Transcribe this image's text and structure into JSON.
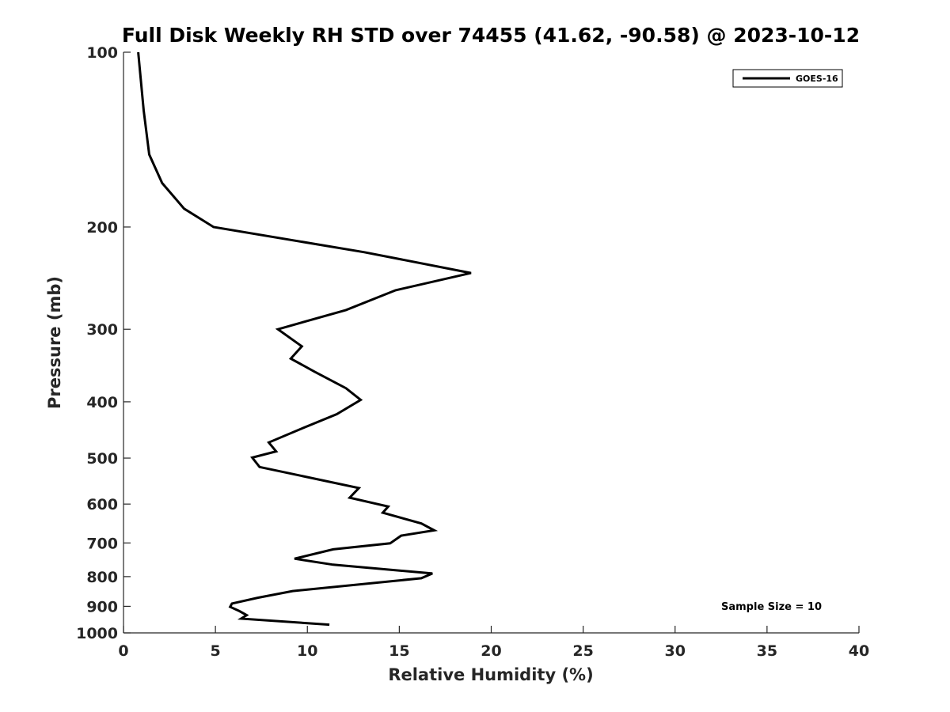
{
  "chart_data": {
    "type": "line",
    "title": "Full Disk Weekly RH STD over 74455 (41.62, -90.58) @ 2023-10-12",
    "xlabel": "Relative Humidity (%)",
    "ylabel": "Pressure (mb)",
    "xlim": [
      0,
      40
    ],
    "ylim": [
      100,
      1000
    ],
    "y_scale": "log",
    "y_reversed": true,
    "x_ticks": [
      "0",
      "5",
      "10",
      "15",
      "20",
      "25",
      "30",
      "35",
      "40"
    ],
    "y_ticks": [
      "100",
      "200",
      "300",
      "400",
      "500",
      "600",
      "700",
      "800",
      "900",
      "1000"
    ],
    "grid": false,
    "legend_position": "top-right",
    "annotation": "Sample Size = 10",
    "series": [
      {
        "name": "GOES-16",
        "color": "#000000",
        "points": [
          [
            0.8,
            100
          ],
          [
            1.1,
            126
          ],
          [
            1.4,
            150
          ],
          [
            2.1,
            168
          ],
          [
            3.3,
            186
          ],
          [
            4.9,
            200
          ],
          [
            13.1,
            221
          ],
          [
            18.9,
            240
          ],
          [
            14.8,
            257
          ],
          [
            12.1,
            278
          ],
          [
            8.4,
            300
          ],
          [
            9.7,
            321
          ],
          [
            9.1,
            337
          ],
          [
            10.4,
            355
          ],
          [
            12.1,
            379
          ],
          [
            12.9,
            397
          ],
          [
            11.6,
            420
          ],
          [
            9.6,
            446
          ],
          [
            7.9,
            470
          ],
          [
            8.3,
            487
          ],
          [
            7.0,
            499
          ],
          [
            7.4,
            518
          ],
          [
            12.8,
            563
          ],
          [
            12.3,
            585
          ],
          [
            14.4,
            606
          ],
          [
            14.1,
            621
          ],
          [
            16.2,
            648
          ],
          [
            16.9,
            666
          ],
          [
            15.1,
            680
          ],
          [
            14.5,
            701
          ],
          [
            11.4,
            718
          ],
          [
            9.3,
            745
          ],
          [
            11.4,
            763
          ],
          [
            16.8,
            790
          ],
          [
            16.2,
            805
          ],
          [
            9.2,
            847
          ],
          [
            7.3,
            870
          ],
          [
            5.9,
            890
          ],
          [
            5.8,
            902
          ],
          [
            6.3,
            917
          ],
          [
            6.7,
            932
          ],
          [
            6.4,
            945
          ],
          [
            11.2,
            968
          ]
        ]
      }
    ]
  }
}
